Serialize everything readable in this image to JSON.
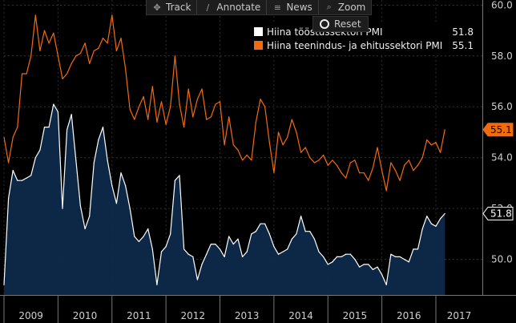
{
  "toolbar": {
    "buttons": [
      {
        "label": "Track",
        "icon": "crosshair-icon"
      },
      {
        "label": "Annotate",
        "icon": "pencil-icon"
      },
      {
        "label": "News",
        "icon": "news-icon"
      },
      {
        "label": "Zoom",
        "icon": "magnifier-icon"
      }
    ],
    "reset_label": "Reset"
  },
  "legend": [
    {
      "name": "Hiina tööstussektori PMI",
      "value": "51.8",
      "color": "#ffffff"
    },
    {
      "name": "Hiina teenindus- ja ehitussektori PMI",
      "value": "55.1",
      "color": "#f26b0f"
    }
  ],
  "chart_data": {
    "type": "line",
    "title": "",
    "xlabel": "",
    "ylabel": "",
    "ylim": [
      48.6,
      60.2
    ],
    "y_ticks": [
      "50.0",
      "52.0",
      "54.0",
      "56.0",
      "58.0",
      "60.0"
    ],
    "x_tick_labels": [
      "2009",
      "2010",
      "2011",
      "2012",
      "2013",
      "2014",
      "2015",
      "2016",
      "2017"
    ],
    "x_range": [
      "2009-01",
      "2017-01"
    ],
    "grid": true,
    "series": [
      {
        "name": "Hiina tööstussektori PMI",
        "color": "#ffffff",
        "fill": "#0e2a4a",
        "last_value": "51.8",
        "points": [
          [
            "2009-01",
            49.0
          ],
          [
            "2009-02",
            52.4
          ],
          [
            "2009-03",
            53.5
          ],
          [
            "2009-04",
            53.1
          ],
          [
            "2009-05",
            53.1
          ],
          [
            "2009-06",
            53.2
          ],
          [
            "2009-07",
            53.3
          ],
          [
            "2009-08",
            54.0
          ],
          [
            "2009-09",
            54.3
          ],
          [
            "2009-10",
            55.2
          ],
          [
            "2009-11",
            55.2
          ],
          [
            "2009-12",
            56.1
          ],
          [
            "2010-01",
            55.8
          ],
          [
            "2010-02",
            52.0
          ],
          [
            "2010-03",
            55.1
          ],
          [
            "2010-04",
            55.7
          ],
          [
            "2010-05",
            53.9
          ],
          [
            "2010-06",
            52.1
          ],
          [
            "2010-07",
            51.2
          ],
          [
            "2010-08",
            51.7
          ],
          [
            "2010-09",
            53.8
          ],
          [
            "2010-10",
            54.7
          ],
          [
            "2010-11",
            55.2
          ],
          [
            "2010-12",
            53.9
          ],
          [
            "2011-01",
            52.9
          ],
          [
            "2011-02",
            52.2
          ],
          [
            "2011-03",
            53.4
          ],
          [
            "2011-04",
            52.9
          ],
          [
            "2011-05",
            52.0
          ],
          [
            "2011-06",
            50.9
          ],
          [
            "2011-07",
            50.7
          ],
          [
            "2011-08",
            50.9
          ],
          [
            "2011-09",
            51.2
          ],
          [
            "2011-10",
            50.4
          ],
          [
            "2011-11",
            49.0
          ],
          [
            "2011-12",
            50.3
          ],
          [
            "2012-01",
            50.5
          ],
          [
            "2012-02",
            51.0
          ],
          [
            "2012-03",
            53.1
          ],
          [
            "2012-04",
            53.3
          ],
          [
            "2012-05",
            50.4
          ],
          [
            "2012-06",
            50.2
          ],
          [
            "2012-07",
            50.1
          ],
          [
            "2012-08",
            49.2
          ],
          [
            "2012-09",
            49.8
          ],
          [
            "2012-10",
            50.2
          ],
          [
            "2012-11",
            50.6
          ],
          [
            "2012-12",
            50.6
          ],
          [
            "2013-01",
            50.4
          ],
          [
            "2013-02",
            50.1
          ],
          [
            "2013-03",
            50.9
          ],
          [
            "2013-04",
            50.6
          ],
          [
            "2013-05",
            50.8
          ],
          [
            "2013-06",
            50.1
          ],
          [
            "2013-07",
            50.3
          ],
          [
            "2013-08",
            51.0
          ],
          [
            "2013-09",
            51.1
          ],
          [
            "2013-10",
            51.4
          ],
          [
            "2013-11",
            51.4
          ],
          [
            "2013-12",
            51.0
          ],
          [
            "2014-01",
            50.5
          ],
          [
            "2014-02",
            50.2
          ],
          [
            "2014-03",
            50.3
          ],
          [
            "2014-04",
            50.4
          ],
          [
            "2014-05",
            50.8
          ],
          [
            "2014-06",
            51.0
          ],
          [
            "2014-07",
            51.7
          ],
          [
            "2014-08",
            51.1
          ],
          [
            "2014-09",
            51.1
          ],
          [
            "2014-10",
            50.8
          ],
          [
            "2014-11",
            50.3
          ],
          [
            "2014-12",
            50.1
          ],
          [
            "2015-01",
            49.8
          ],
          [
            "2015-02",
            49.9
          ],
          [
            "2015-03",
            50.1
          ],
          [
            "2015-04",
            50.1
          ],
          [
            "2015-05",
            50.2
          ],
          [
            "2015-06",
            50.2
          ],
          [
            "2015-07",
            50.0
          ],
          [
            "2015-08",
            49.7
          ],
          [
            "2015-09",
            49.8
          ],
          [
            "2015-10",
            49.8
          ],
          [
            "2015-11",
            49.6
          ],
          [
            "2015-12",
            49.7
          ],
          [
            "2016-01",
            49.4
          ],
          [
            "2016-02",
            49.0
          ],
          [
            "2016-03",
            50.2
          ],
          [
            "2016-04",
            50.1
          ],
          [
            "2016-05",
            50.1
          ],
          [
            "2016-06",
            50.0
          ],
          [
            "2016-07",
            49.9
          ],
          [
            "2016-08",
            50.4
          ],
          [
            "2016-09",
            50.4
          ],
          [
            "2016-10",
            51.2
          ],
          [
            "2016-11",
            51.7
          ],
          [
            "2016-12",
            51.4
          ],
          [
            "2017-01",
            51.3
          ],
          [
            "2017-02",
            51.6
          ],
          [
            "2017-03",
            51.8
          ]
        ]
      },
      {
        "name": "Hiina teenindus- ja ehitussektori PMI",
        "color": "#f26b0f",
        "last_value": "55.1",
        "points": [
          [
            "2009-01",
            54.8
          ],
          [
            "2009-02",
            53.8
          ],
          [
            "2009-03",
            54.8
          ],
          [
            "2009-04",
            55.2
          ],
          [
            "2009-05",
            57.3
          ],
          [
            "2009-06",
            57.3
          ],
          [
            "2009-07",
            58.0
          ],
          [
            "2009-08",
            59.6
          ],
          [
            "2009-09",
            58.2
          ],
          [
            "2009-10",
            59.0
          ],
          [
            "2009-11",
            58.5
          ],
          [
            "2009-12",
            58.9
          ],
          [
            "2010-01",
            58.0
          ],
          [
            "2010-02",
            57.1
          ],
          [
            "2010-03",
            57.3
          ],
          [
            "2010-04",
            57.7
          ],
          [
            "2010-05",
            58.0
          ],
          [
            "2010-06",
            58.1
          ],
          [
            "2010-07",
            58.5
          ],
          [
            "2010-08",
            57.7
          ],
          [
            "2010-09",
            58.2
          ],
          [
            "2010-10",
            58.3
          ],
          [
            "2010-11",
            58.7
          ],
          [
            "2010-12",
            58.5
          ],
          [
            "2011-01",
            59.6
          ],
          [
            "2011-02",
            58.2
          ],
          [
            "2011-03",
            58.7
          ],
          [
            "2011-04",
            57.5
          ],
          [
            "2011-05",
            55.9
          ],
          [
            "2011-06",
            55.5
          ],
          [
            "2011-07",
            56.0
          ],
          [
            "2011-08",
            56.4
          ],
          [
            "2011-09",
            55.5
          ],
          [
            "2011-10",
            56.8
          ],
          [
            "2011-11",
            55.4
          ],
          [
            "2011-12",
            56.2
          ],
          [
            "2012-01",
            55.3
          ],
          [
            "2012-02",
            56.0
          ],
          [
            "2012-03",
            58.0
          ],
          [
            "2012-04",
            56.1
          ],
          [
            "2012-05",
            55.2
          ],
          [
            "2012-06",
            56.7
          ],
          [
            "2012-07",
            55.6
          ],
          [
            "2012-08",
            56.3
          ],
          [
            "2012-09",
            56.7
          ],
          [
            "2012-10",
            55.5
          ],
          [
            "2012-11",
            55.6
          ],
          [
            "2012-12",
            56.1
          ],
          [
            "2013-01",
            56.2
          ],
          [
            "2013-02",
            54.5
          ],
          [
            "2013-03",
            55.6
          ],
          [
            "2013-04",
            54.5
          ],
          [
            "2013-05",
            54.3
          ],
          [
            "2013-06",
            53.9
          ],
          [
            "2013-07",
            54.1
          ],
          [
            "2013-08",
            53.9
          ],
          [
            "2013-09",
            55.4
          ],
          [
            "2013-10",
            56.3
          ],
          [
            "2013-11",
            56.0
          ],
          [
            "2013-12",
            54.6
          ],
          [
            "2014-01",
            53.4
          ],
          [
            "2014-02",
            55.0
          ],
          [
            "2014-03",
            54.5
          ],
          [
            "2014-04",
            54.8
          ],
          [
            "2014-05",
            55.5
          ],
          [
            "2014-06",
            55.0
          ],
          [
            "2014-07",
            54.2
          ],
          [
            "2014-08",
            54.4
          ],
          [
            "2014-09",
            54.0
          ],
          [
            "2014-10",
            53.8
          ],
          [
            "2014-11",
            53.9
          ],
          [
            "2014-12",
            54.1
          ],
          [
            "2015-01",
            53.7
          ],
          [
            "2015-02",
            53.9
          ],
          [
            "2015-03",
            53.7
          ],
          [
            "2015-04",
            53.4
          ],
          [
            "2015-05",
            53.2
          ],
          [
            "2015-06",
            53.8
          ],
          [
            "2015-07",
            53.9
          ],
          [
            "2015-08",
            53.4
          ],
          [
            "2015-09",
            53.4
          ],
          [
            "2015-10",
            53.1
          ],
          [
            "2015-11",
            53.6
          ],
          [
            "2015-12",
            54.4
          ],
          [
            "2016-01",
            53.5
          ],
          [
            "2016-02",
            52.7
          ],
          [
            "2016-03",
            53.8
          ],
          [
            "2016-04",
            53.5
          ],
          [
            "2016-05",
            53.1
          ],
          [
            "2016-06",
            53.7
          ],
          [
            "2016-07",
            53.9
          ],
          [
            "2016-08",
            53.5
          ],
          [
            "2016-09",
            53.7
          ],
          [
            "2016-10",
            54.0
          ],
          [
            "2016-11",
            54.7
          ],
          [
            "2016-12",
            54.5
          ],
          [
            "2017-01",
            54.6
          ],
          [
            "2017-02",
            54.2
          ],
          [
            "2017-03",
            55.1
          ]
        ]
      }
    ]
  }
}
